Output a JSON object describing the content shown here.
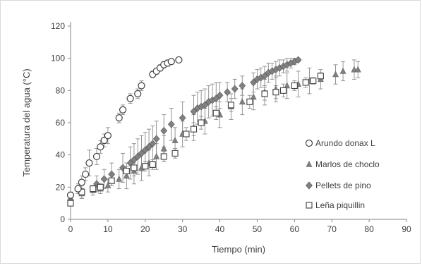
{
  "chart_data": {
    "type": "scatter",
    "title": "",
    "xlabel": "Tiempo (min)",
    "ylabel": "Temperatura del agua (°C)",
    "xlim": [
      0,
      90
    ],
    "ylim": [
      0,
      120
    ],
    "x_ticks": [
      0,
      10,
      20,
      30,
      40,
      50,
      60,
      70,
      80,
      90
    ],
    "y_ticks": [
      0,
      20,
      40,
      60,
      80,
      100,
      120
    ],
    "grid": false,
    "legend_position": "right",
    "series": [
      {
        "name": "Arundo donax L",
        "marker": "circle-open",
        "color": "#404040",
        "x": [
          0,
          2,
          3,
          4,
          5,
          7,
          8,
          9,
          10,
          13,
          14,
          16,
          18,
          19,
          22,
          23,
          24,
          25,
          26,
          27,
          29
        ],
        "y": [
          15,
          19,
          23,
          28,
          35,
          39,
          45,
          49,
          52,
          63,
          68,
          75,
          78,
          83,
          90,
          92,
          94,
          96,
          97,
          98,
          99
        ],
        "err": [
          2,
          3,
          4,
          4,
          8,
          5,
          4,
          4,
          5,
          3,
          3,
          3,
          3,
          3,
          2,
          2,
          2,
          2,
          2,
          1,
          1
        ]
      },
      {
        "name": "Marlos de choclo",
        "marker": "triangle",
        "color": "#808080",
        "x": [
          0,
          3,
          6,
          8,
          10,
          13,
          15,
          17,
          19,
          21,
          23,
          25,
          28,
          30,
          33,
          36,
          40,
          43,
          46,
          49,
          52,
          55,
          58,
          61,
          64,
          67,
          71,
          73,
          76,
          77
        ],
        "y": [
          12,
          16,
          18,
          19,
          21,
          25,
          27,
          30,
          32,
          35,
          39,
          44,
          49,
          53,
          57,
          61,
          65,
          70,
          73,
          76,
          79,
          81,
          83,
          84,
          86,
          87,
          90,
          92,
          93,
          93
        ],
        "err": [
          2,
          3,
          3,
          3,
          4,
          6,
          8,
          8,
          8,
          8,
          8,
          8,
          8,
          8,
          8,
          8,
          8,
          8,
          8,
          8,
          8,
          8,
          8,
          8,
          8,
          6,
          6,
          6,
          6,
          5
        ]
      },
      {
        "name": "Pellets de pino",
        "marker": "diamond",
        "color": "#808080",
        "x": [
          0,
          3,
          7,
          9,
          11,
          14,
          16,
          17,
          18,
          19,
          20,
          21,
          22,
          23,
          25,
          27,
          30,
          33,
          34,
          35,
          36,
          37,
          38,
          39,
          40,
          42,
          44,
          46,
          49,
          50,
          51,
          52,
          53,
          54,
          55,
          56,
          57,
          58,
          59,
          60,
          61
        ],
        "y": [
          12,
          17,
          22,
          25,
          28,
          32,
          35,
          37,
          39,
          41,
          43,
          45,
          47,
          50,
          55,
          59,
          63,
          67,
          69,
          70,
          71,
          73,
          74,
          75,
          77,
          79,
          81,
          83,
          85,
          87,
          88,
          89,
          91,
          92,
          93,
          94,
          95,
          96,
          97,
          98,
          99
        ],
        "err": [
          3,
          4,
          5,
          6,
          7,
          9,
          10,
          10,
          11,
          11,
          11,
          11,
          11,
          11,
          10,
          10,
          10,
          10,
          10,
          10,
          10,
          10,
          10,
          10,
          8,
          6,
          6,
          6,
          6,
          6,
          6,
          6,
          6,
          5,
          5,
          5,
          4,
          4,
          3,
          2,
          1
        ]
      },
      {
        "name": "Leña piquillin",
        "marker": "square-open",
        "color": "#404040",
        "x": [
          0,
          3,
          6,
          8,
          11,
          15,
          17,
          20,
          22,
          25,
          28,
          31,
          33,
          35,
          39,
          43,
          48,
          52,
          55,
          57,
          60,
          63,
          65,
          67
        ],
        "y": [
          10,
          17,
          19,
          20,
          24,
          30,
          32,
          33,
          34,
          39,
          41,
          53,
          56,
          60,
          66,
          71,
          73,
          78,
          79,
          80,
          83,
          85,
          86,
          89
        ],
        "err": [
          1,
          2,
          2,
          2,
          3,
          3,
          3,
          3,
          3,
          3,
          3,
          4,
          4,
          4,
          4,
          4,
          4,
          4,
          4,
          4,
          3,
          3,
          2,
          2
        ]
      }
    ]
  }
}
